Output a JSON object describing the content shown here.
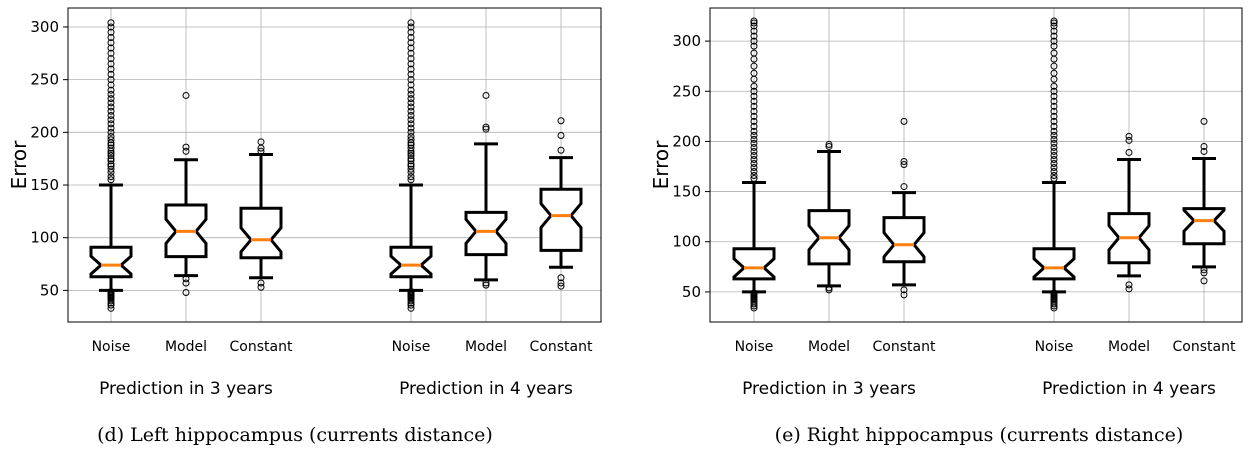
{
  "chart_data": [
    {
      "type": "boxplot",
      "caption": "(d) Left hippocampus (currents distance)",
      "ylabel": "Error",
      "ylim": [
        20,
        318
      ],
      "yticks": [
        50,
        100,
        150,
        200,
        250,
        300
      ],
      "grid": true,
      "notched": true,
      "groups": [
        {
          "label": "Prediction in 3 years",
          "boxes": [
            {
              "label": "Noise",
              "whislo": 50,
              "q1": 63,
              "med": 74,
              "q3": 91,
              "whishi": 150,
              "fliers": [
                33,
                36,
                38,
                40,
                42,
                43,
                44,
                45,
                46,
                47,
                48,
                49,
                155,
                158,
                162,
                165,
                168,
                170,
                173,
                175,
                178,
                180,
                182,
                185,
                188,
                190,
                193,
                196,
                200,
                204,
                208,
                212,
                216,
                220,
                224,
                228,
                232,
                236,
                240,
                245,
                250,
                255,
                260,
                265,
                270,
                275,
                280,
                285,
                290,
                295,
                300,
                304
              ]
            },
            {
              "label": "Model",
              "whislo": 64,
              "q1": 82,
              "med": 106,
              "q3": 131,
              "whishi": 174,
              "fliers": [
                48,
                57,
                61,
                182,
                186,
                235
              ]
            },
            {
              "label": "Constant",
              "whislo": 62,
              "q1": 81,
              "med": 98,
              "q3": 128,
              "whishi": 179,
              "fliers": [
                53,
                57,
                182,
                185,
                191
              ]
            }
          ]
        },
        {
          "label": "Prediction in 4 years",
          "boxes": [
            {
              "label": "Noise",
              "whislo": 50,
              "q1": 63,
              "med": 74,
              "q3": 91,
              "whishi": 150,
              "fliers": [
                33,
                36,
                38,
                40,
                42,
                43,
                44,
                45,
                46,
                47,
                48,
                49,
                155,
                158,
                162,
                165,
                168,
                170,
                173,
                175,
                178,
                180,
                182,
                185,
                188,
                190,
                193,
                196,
                200,
                204,
                208,
                212,
                216,
                220,
                224,
                228,
                232,
                236,
                240,
                245,
                250,
                255,
                260,
                265,
                270,
                275,
                280,
                285,
                290,
                295,
                300,
                304
              ]
            },
            {
              "label": "Model",
              "whislo": 60,
              "q1": 84,
              "med": 106,
              "q3": 124,
              "whishi": 189,
              "fliers": [
                55,
                57,
                203,
                205,
                235
              ]
            },
            {
              "label": "Constant",
              "whislo": 72,
              "q1": 88,
              "med": 121,
              "q3": 146,
              "whishi": 176,
              "fliers": [
                54,
                57,
                62,
                183,
                197,
                211
              ]
            }
          ]
        }
      ]
    },
    {
      "type": "boxplot",
      "caption": "(e) Right hippocampus (currents distance)",
      "ylabel": "Error",
      "ylim": [
        20,
        333
      ],
      "yticks": [
        50,
        100,
        150,
        200,
        250,
        300
      ],
      "grid": true,
      "notched": true,
      "groups": [
        {
          "label": "Prediction in 3 years",
          "boxes": [
            {
              "label": "Noise",
              "whislo": 50,
              "q1": 63,
              "med": 74,
              "q3": 93,
              "whishi": 159,
              "fliers": [
                34,
                36,
                38,
                40,
                42,
                43,
                44,
                45,
                46,
                47,
                48,
                49,
                163,
                166,
                170,
                174,
                178,
                182,
                186,
                190,
                194,
                198,
                202,
                206,
                210,
                215,
                220,
                225,
                230,
                235,
                240,
                245,
                250,
                255,
                262,
                268,
                275,
                282,
                288,
                295,
                300,
                305,
                310,
                315,
                318,
                320
              ]
            },
            {
              "label": "Model",
              "whislo": 56,
              "q1": 78,
              "med": 104,
              "q3": 131,
              "whishi": 190,
              "fliers": [
                52,
                54,
                195,
                197
              ]
            },
            {
              "label": "Constant",
              "whislo": 57,
              "q1": 80,
              "med": 97,
              "q3": 124,
              "whishi": 149,
              "fliers": [
                47,
                52,
                155,
                177,
                180,
                220
              ]
            }
          ]
        },
        {
          "label": "Prediction in 4 years",
          "boxes": [
            {
              "label": "Noise",
              "whislo": 50,
              "q1": 63,
              "med": 74,
              "q3": 93,
              "whishi": 159,
              "fliers": [
                34,
                36,
                38,
                40,
                42,
                43,
                44,
                45,
                46,
                47,
                48,
                49,
                163,
                166,
                170,
                174,
                178,
                182,
                186,
                190,
                194,
                198,
                202,
                206,
                210,
                215,
                220,
                225,
                230,
                235,
                240,
                245,
                250,
                255,
                262,
                268,
                275,
                282,
                288,
                295,
                300,
                305,
                310,
                315,
                318,
                320
              ]
            },
            {
              "label": "Model",
              "whislo": 66,
              "q1": 79,
              "med": 104,
              "q3": 128,
              "whishi": 182,
              "fliers": [
                53,
                57,
                189,
                201,
                205
              ]
            },
            {
              "label": "Constant",
              "whislo": 75,
              "q1": 98,
              "med": 121,
              "q3": 133,
              "whishi": 183,
              "fliers": [
                61,
                69,
                72,
                190,
                195,
                220
              ]
            }
          ]
        }
      ]
    }
  ],
  "colors": {
    "box": "#000000",
    "median": "#ff7f0e",
    "grid": "#b0b0b0",
    "flier": "#000000"
  }
}
